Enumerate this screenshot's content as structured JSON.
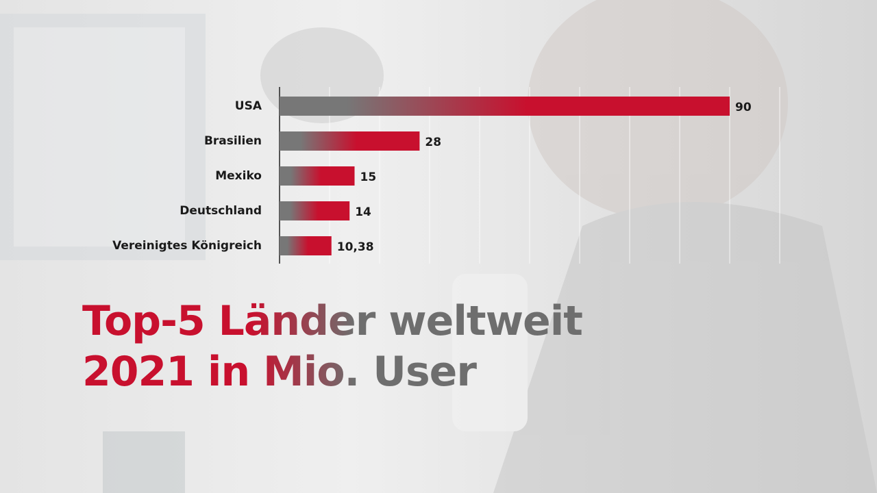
{
  "chart_data": {
    "type": "hbar",
    "title": "Top-5 Länder weltweit 2021 in Mio. User",
    "categories": [
      "USA",
      "Brasilien",
      "Mexiko",
      "Deutschland",
      "Vereinigtes Königreich"
    ],
    "values": [
      90,
      28,
      15,
      14,
      10.38
    ],
    "value_labels": [
      "90",
      "28",
      "15",
      "14",
      "10,38"
    ],
    "color": "#c8102e",
    "xlim": [
      0,
      100
    ],
    "xticks": [
      0,
      10,
      20,
      30,
      40,
      50,
      60,
      70,
      80,
      90,
      100
    ],
    "grid": true
  }
}
